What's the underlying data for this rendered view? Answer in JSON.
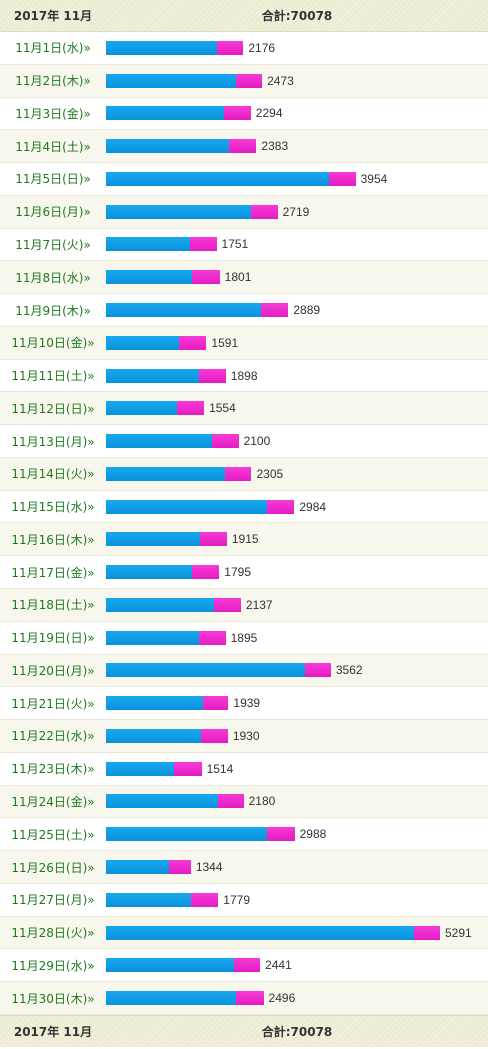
{
  "header": {
    "month_label": "2017年 11月",
    "total_label": "合計:70078"
  },
  "footer": {
    "month_label": "2017年 11月",
    "total_label": "合計:70078"
  },
  "colors": {
    "series_blue": "#0a9de6",
    "series_pink": "#f02ad2",
    "date_link": "#1f7a1f"
  },
  "chart_data": {
    "type": "bar",
    "orientation": "horizontal",
    "stacked": true,
    "title": "",
    "total": 70078,
    "categories": [
      "11月1日(水)»",
      "11月2日(木)»",
      "11月3日(金)»",
      "11月4日(土)»",
      "11月5日(日)»",
      "11月6日(月)»",
      "11月7日(火)»",
      "11月8日(水)»",
      "11月9日(木)»",
      "11月10日(金)»",
      "11月11日(土)»",
      "11月12日(日)»",
      "11月13日(月)»",
      "11月14日(火)»",
      "11月15日(水)»",
      "11月16日(木)»",
      "11月17日(金)»",
      "11月18日(土)»",
      "11月19日(日)»",
      "11月20日(月)»",
      "11月21日(火)»",
      "11月22日(水)»",
      "11月23日(木)»",
      "11月24日(金)»",
      "11月25日(土)»",
      "11月26日(日)»",
      "11月27日(月)»",
      "11月28日(火)»",
      "11月29日(水)»",
      "11月30日(木)»"
    ],
    "values": [
      2176,
      2473,
      2294,
      2383,
      3954,
      2719,
      1751,
      1801,
      2889,
      1591,
      1898,
      1554,
      2100,
      2305,
      2984,
      1915,
      1795,
      2137,
      1895,
      3562,
      1939,
      1930,
      1514,
      2180,
      2988,
      1344,
      1779,
      5291,
      2441,
      2496
    ],
    "series": [
      {
        "values": [
          1755,
          2062,
          1862,
          1951,
          3526,
          2292,
          1324,
          1369,
          2459,
          1162,
          1468,
          1132,
          1675,
          1883,
          2554,
          1491,
          1370,
          1710,
          1469,
          3145,
          1530,
          1504,
          1080,
          1772,
          2553,
          1002,
          1353,
          4874,
          2022,
          2066
        ]
      },
      {
        "values": [
          421,
          411,
          432,
          432,
          428,
          427,
          427,
          432,
          430,
          429,
          430,
          422,
          425,
          422,
          430,
          424,
          425,
          427,
          426,
          417,
          409,
          426,
          434,
          408,
          435,
          342,
          426,
          417,
          419,
          430
        ]
      }
    ],
    "xlim": [
      0,
      5291
    ]
  }
}
